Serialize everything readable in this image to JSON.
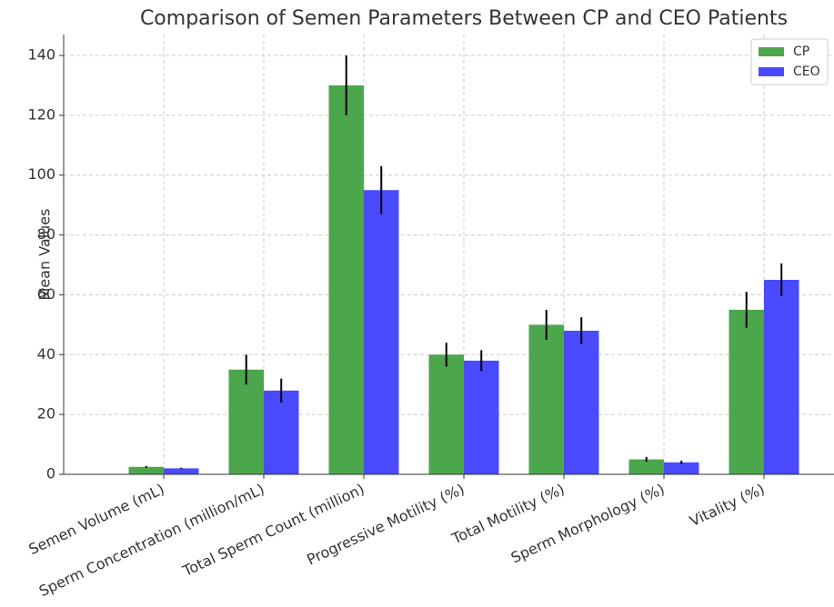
{
  "chart_data": {
    "type": "bar",
    "title": "Comparison of Semen Parameters Between CP and CEO Patients",
    "ylabel": "Mean Values",
    "categories": [
      "Semen Volume (mL)",
      "Sperm Concentration (million/mL)",
      "Total Sperm Count (million)",
      "Progressive Motility (%)",
      "Total Motility (%)",
      "Sperm Morphology (%)",
      "Vitality (%)"
    ],
    "series": [
      {
        "name": "CP",
        "color": "#4ca64c",
        "values": [
          2.5,
          35,
          130,
          40,
          50,
          5,
          55
        ],
        "errors": [
          0.3,
          5,
          10,
          4,
          5,
          0.8,
          6
        ]
      },
      {
        "name": "CEO",
        "color": "#4a4aff",
        "values": [
          2,
          28,
          95,
          38,
          48,
          4,
          65
        ],
        "errors": [
          0.2,
          4,
          8,
          3.5,
          4.5,
          0.6,
          5.5
        ]
      }
    ],
    "ylim": [
      0,
      147
    ],
    "yticks": [
      0,
      20,
      40,
      60,
      80,
      100,
      120,
      140
    ],
    "grid": true,
    "legend": "upper right"
  }
}
